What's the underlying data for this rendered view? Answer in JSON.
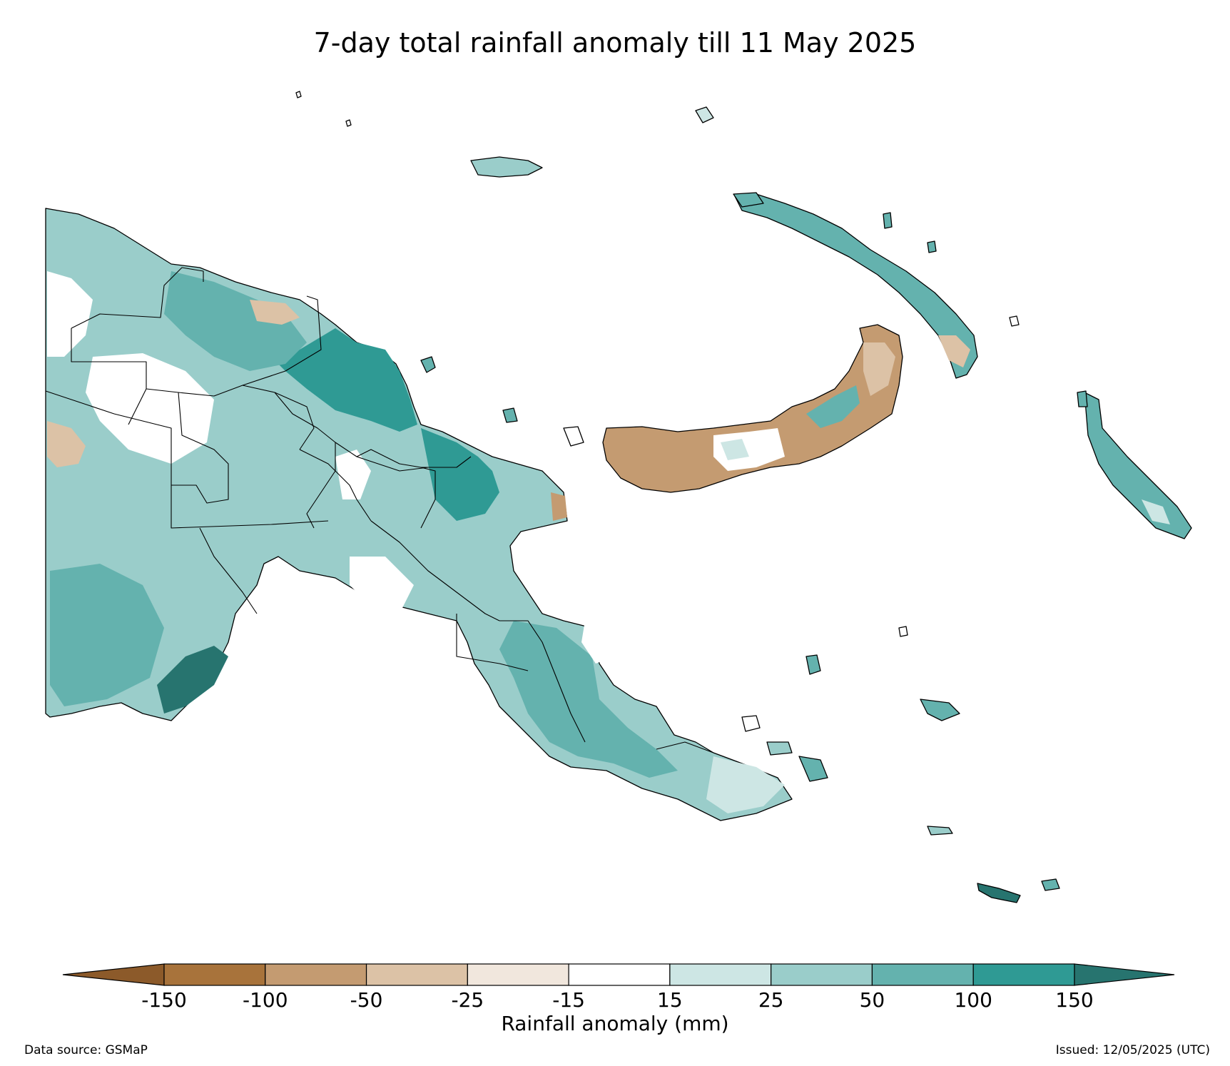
{
  "title": "7-day total rainfall anomaly till 11 May 2025",
  "colorbar": {
    "title": "Rainfall anomaly (mm)",
    "tick_labels": [
      "-150",
      "-100",
      "-50",
      "-25",
      "-15",
      "15",
      "25",
      "50",
      "100",
      "150"
    ],
    "bins": [
      {
        "from": null,
        "to": -150,
        "color": "#8c5a2a"
      },
      {
        "from": -150,
        "to": -100,
        "color": "#a8733b"
      },
      {
        "from": -100,
        "to": -50,
        "color": "#c49b71"
      },
      {
        "from": -50,
        "to": -25,
        "color": "#dcc2a6"
      },
      {
        "from": -25,
        "to": -15,
        "color": "#f1e7dd"
      },
      {
        "from": -15,
        "to": 15,
        "color": "#ffffff"
      },
      {
        "from": 15,
        "to": 25,
        "color": "#cde6e4"
      },
      {
        "from": 25,
        "to": 50,
        "color": "#9acdca"
      },
      {
        "from": 50,
        "to": 100,
        "color": "#64b2ae"
      },
      {
        "from": 100,
        "to": 150,
        "color": "#2f9a94"
      },
      {
        "from": 150,
        "to": null,
        "color": "#27746f"
      }
    ]
  },
  "footer": {
    "data_source": "Data source: GSMaP",
    "issued": "Issued: 12/05/2025 (UTC)"
  }
}
